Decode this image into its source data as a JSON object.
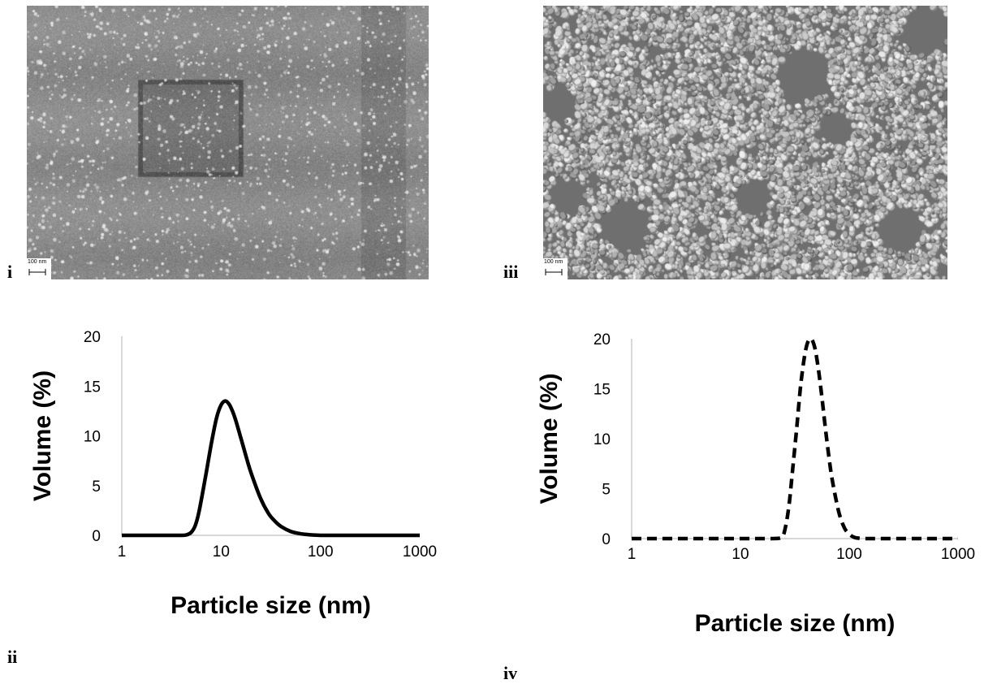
{
  "panels": {
    "i": {
      "label": "i",
      "scale_bar": "100 nm"
    },
    "ii": {
      "label": "ii"
    },
    "iii": {
      "label": "iii",
      "scale_bar": "100 nm"
    },
    "iv": {
      "label": "iv"
    }
  },
  "chart_data": [
    {
      "type": "line",
      "panel": "ii",
      "title": "",
      "xlabel": "Particle size (nm)",
      "ylabel": "Volume (%)",
      "x_scale": "log",
      "xlim": [
        1,
        1000
      ],
      "ylim": [
        0,
        20
      ],
      "x_ticks": [
        "1",
        "10",
        "100",
        "1000"
      ],
      "y_ticks": [
        "0",
        "5",
        "10",
        "15",
        "20"
      ],
      "grid": false,
      "line_style": "solid",
      "line_color": "#000000",
      "series": [
        {
          "x": [
            1,
            2,
            3,
            4,
            4.5,
            5,
            5.5,
            6,
            7,
            8,
            9,
            10,
            11,
            12,
            13,
            14,
            16,
            18,
            20,
            25,
            30,
            35,
            40,
            50,
            60,
            70,
            80,
            100,
            120,
            200,
            500,
            1000
          ],
          "y": [
            0,
            0,
            0,
            0,
            0.05,
            0.3,
            1.0,
            2.4,
            6.0,
            9.3,
            11.8,
            13.1,
            13.5,
            13.2,
            12.5,
            11.6,
            9.6,
            7.8,
            6.3,
            3.7,
            2.2,
            1.4,
            0.9,
            0.4,
            0.2,
            0.1,
            0.05,
            0,
            0,
            0,
            0,
            0
          ]
        }
      ]
    },
    {
      "type": "line",
      "panel": "iv",
      "title": "",
      "xlabel": "Particle size (nm)",
      "ylabel": "Volume (%)",
      "x_scale": "log",
      "xlim": [
        1,
        1000
      ],
      "ylim": [
        0,
        20
      ],
      "x_ticks": [
        "1",
        "10",
        "100",
        "1000"
      ],
      "y_ticks": [
        "0",
        "5",
        "10",
        "15",
        "20"
      ],
      "grid": false,
      "line_style": "dashed",
      "line_color": "#000000",
      "series": [
        {
          "x": [
            1,
            5,
            10,
            15,
            20,
            24,
            26,
            28,
            30,
            33,
            36,
            40,
            44,
            48,
            52,
            56,
            60,
            65,
            70,
            80,
            90,
            100,
            110,
            120,
            140,
            200,
            500,
            1000
          ],
          "y": [
            0,
            0,
            0,
            0,
            0,
            0.1,
            1.2,
            3.4,
            6.6,
            11.2,
            15.6,
            19.0,
            20.0,
            19.2,
            17.0,
            14.2,
            11.3,
            8.2,
            5.8,
            2.7,
            1.1,
            0.45,
            0.15,
            0.05,
            0,
            0,
            0,
            0
          ]
        }
      ]
    }
  ]
}
